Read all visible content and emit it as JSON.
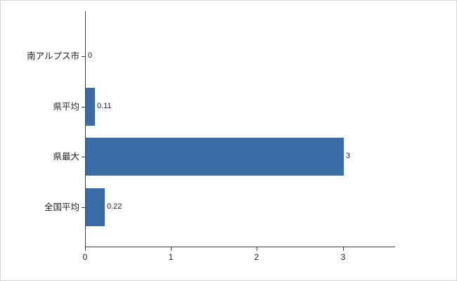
{
  "chart_data": {
    "type": "bar",
    "orientation": "horizontal",
    "title": "",
    "xlabel": "",
    "ylabel": "",
    "categories": [
      "南アルプス市",
      "県平均",
      "県最大",
      "全国平均"
    ],
    "values": [
      0,
      0.11,
      3,
      0.22
    ],
    "value_labels": [
      "0",
      "0.11",
      "3",
      "0.22"
    ],
    "x_tick_labels": [
      "0",
      "1",
      "2",
      "3"
    ],
    "x_tick_values": [
      0,
      1,
      2,
      3
    ],
    "xlim": [
      0,
      3.6
    ],
    "grid": false,
    "legend_position": "none",
    "bar_color": "#3a6ba4",
    "axis_color": "#404040",
    "text_color": "#222222",
    "background_color": "#ffffff",
    "border_color": "#d4d4d4"
  }
}
